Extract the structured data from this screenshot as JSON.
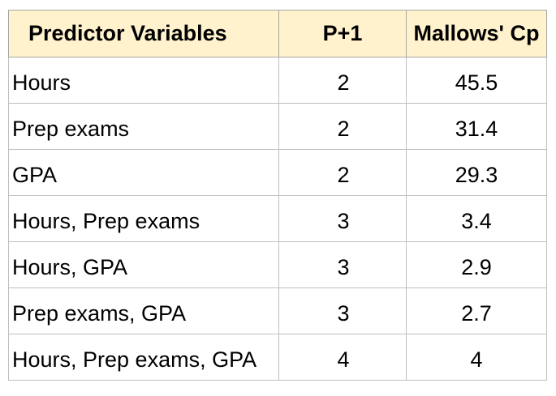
{
  "table": {
    "headers": [
      "Predictor Variables",
      "P+1",
      "Mallows' Cp"
    ],
    "rows": [
      {
        "variables": "Hours",
        "p1": "2",
        "cp": "45.5"
      },
      {
        "variables": "Prep exams",
        "p1": "2",
        "cp": "31.4"
      },
      {
        "variables": "GPA",
        "p1": "2",
        "cp": "29.3"
      },
      {
        "variables": "Hours, Prep exams",
        "p1": "3",
        "cp": "3.4"
      },
      {
        "variables": "Hours, GPA",
        "p1": "3",
        "cp": "2.9"
      },
      {
        "variables": "Prep exams, GPA",
        "p1": "3",
        "cp": "2.7"
      },
      {
        "variables": "Hours, Prep exams, GPA",
        "p1": "4",
        "cp": "4"
      }
    ]
  },
  "colors": {
    "header_fill": "#fff2cc",
    "grid": "#bfbfbf",
    "text": "#000000"
  }
}
